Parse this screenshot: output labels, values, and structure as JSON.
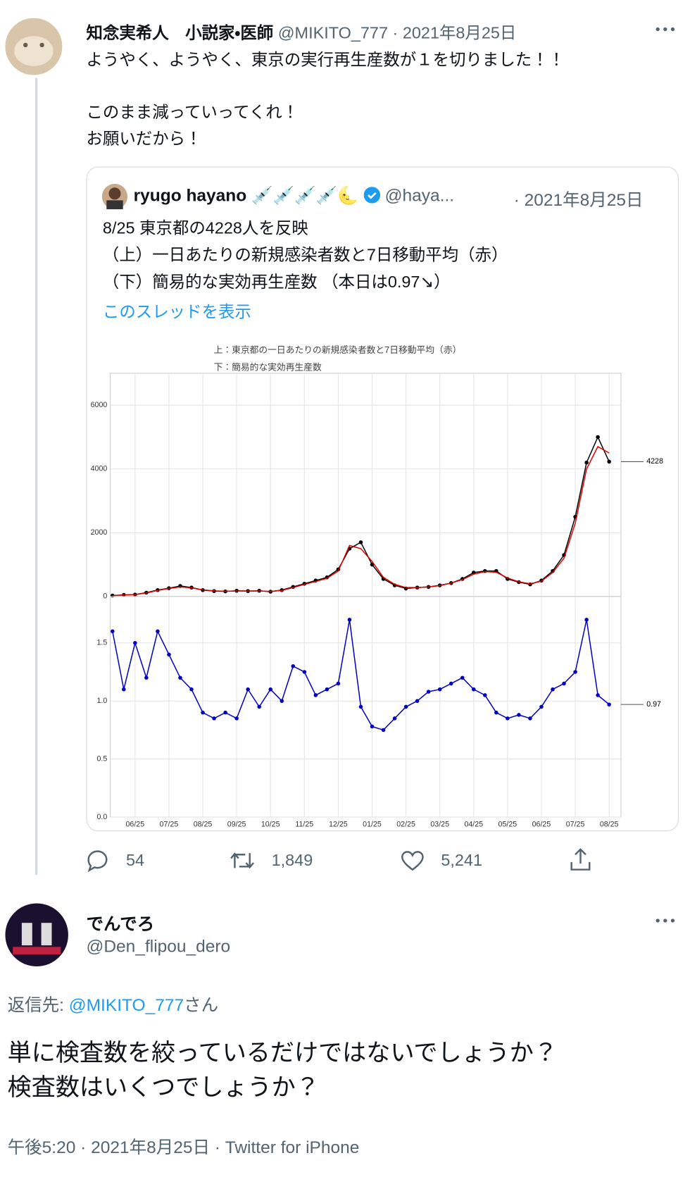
{
  "tweet": {
    "author_name": "知念実希人　小説家・医師",
    "handle": "@MIKITO_777",
    "date": "· 2021年8月25日",
    "text": [
      "ようやく、ようやく、東京の実行再生産数が１を切りました！！",
      "このまま減っていってくれ！",
      "お願いだから！"
    ],
    "quoted": {
      "author_name": "ryugo hayano",
      "emoji": "💉💉💉💉🌜",
      "handle": "@haya...",
      "date": "· 2021年8月25日",
      "text": [
        "8/25 東京都の4228人を反映",
        "（上）一日あたりの新規感染者数と7日移動平均（赤）",
        "（下）簡易的な実効再生産数 （本日は0.97↘）"
      ],
      "show_thread": "このスレッドを表示"
    },
    "stats": {
      "replies": "54",
      "retweets": "1,849",
      "likes": "5,241"
    }
  },
  "reply": {
    "author_name": "でんでろ",
    "handle": "@Den_flipou_dero",
    "reply_to_prefix": "返信先: ",
    "reply_to": "@MIKITO_777",
    "reply_to_suffix": "さん",
    "text": [
      "単に検査数を絞っているだけではないでしょうか？",
      "検査数はいくつでしょうか？"
    ],
    "footer": "午後5:20 · 2021年8月25日 · Twitter for iPhone"
  },
  "chart_data": [
    {
      "type": "line",
      "title": "上：東京都の一日あたりの新規感染者数と7日移動平均（赤）",
      "series": [
        {
          "color": "#000000",
          "markers": true,
          "values": [
            30,
            50,
            60,
            120,
            200,
            260,
            330,
            280,
            200,
            170,
            160,
            180,
            170,
            180,
            150,
            200,
            300,
            400,
            500,
            600,
            850,
            1500,
            1700,
            1000,
            550,
            350,
            250,
            280,
            300,
            350,
            420,
            550,
            750,
            800,
            800,
            550,
            450,
            380,
            500,
            800,
            1300,
            2500,
            4200,
            5000,
            4228
          ]
        },
        {
          "color": "#e00000",
          "markers": false,
          "values": [
            25,
            45,
            60,
            110,
            190,
            250,
            300,
            270,
            210,
            175,
            165,
            170,
            170,
            170,
            160,
            190,
            280,
            380,
            470,
            570,
            800,
            1600,
            1500,
            1100,
            600,
            380,
            280,
            280,
            300,
            340,
            420,
            530,
            700,
            780,
            760,
            580,
            460,
            400,
            480,
            750,
            1200,
            2300,
            4000,
            4700,
            4500
          ]
        }
      ],
      "ylim": [
        0,
        7000
      ],
      "yticks": [
        0,
        2000,
        4000,
        6000
      ],
      "grid": true,
      "end_label": 4228
    },
    {
      "type": "line",
      "title": "下：簡易的な実効再生産数",
      "categories": [
        null,
        null,
        "06/25",
        null,
        null,
        "07/25",
        null,
        null,
        "08/25",
        null,
        null,
        "09/25",
        null,
        null,
        "10/25",
        null,
        null,
        "11/25",
        null,
        null,
        "12/25",
        null,
        null,
        "01/25",
        null,
        null,
        "02/25",
        null,
        null,
        "03/25",
        null,
        null,
        "04/25",
        null,
        null,
        "05/25",
        null,
        null,
        "06/25",
        null,
        null,
        "07/25",
        null,
        null,
        "08/25"
      ],
      "series": [
        {
          "color": "#0000c0",
          "markers": true,
          "values": [
            1.6,
            1.1,
            1.5,
            1.2,
            1.6,
            1.4,
            1.2,
            1.1,
            0.9,
            0.85,
            0.9,
            0.85,
            1.1,
            0.95,
            1.1,
            1.0,
            1.3,
            1.25,
            1.05,
            1.1,
            1.15,
            1.7,
            0.95,
            0.78,
            0.75,
            0.85,
            0.95,
            1.0,
            1.08,
            1.1,
            1.15,
            1.2,
            1.1,
            1.05,
            0.9,
            0.85,
            0.88,
            0.85,
            0.95,
            1.1,
            1.15,
            1.25,
            1.7,
            1.05,
            0.97
          ]
        }
      ],
      "ylim": [
        0,
        1.9
      ],
      "yticks": [
        {
          "value": 0,
          "label": "0.0"
        },
        {
          "value": 0.5,
          "label": "0.5"
        },
        {
          "value": 1,
          "label": "1.0"
        },
        {
          "value": 1.5,
          "label": "1.5"
        }
      ],
      "grid": true,
      "end_label": 0.97
    }
  ]
}
